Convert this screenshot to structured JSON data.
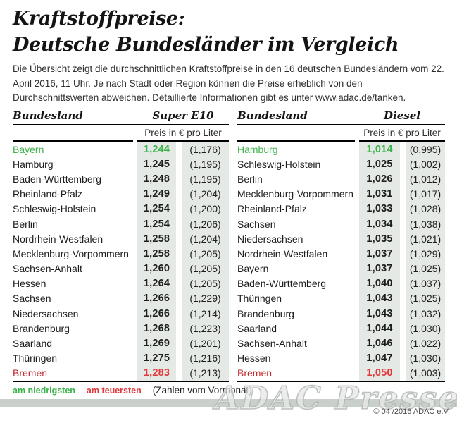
{
  "title": {
    "line1": "Kraftstoffpreise:",
    "line2": "Deutsche Bundesländer im Vergleich"
  },
  "intro": "Die Übersicht zeigt die durchschnittlichen Kraftstoffpreise in den 16 deutschen Bundesländern vom 22. April 2016, 11 Uhr. Je nach Stadt oder Region können die Preise erheblich von den Durchschnittswerten abweichen. Detaillierte Informationen gibt es unter www.adac.de/tanken.",
  "colors": {
    "green": "#3cb24a",
    "red": "#c22a2e",
    "red-bright": "#e23a3c",
    "stripe": "#e5e9e6",
    "bar": "#c9cfca"
  },
  "chart_data": [
    {
      "type": "table",
      "name_header": "Bundesland",
      "fuel_header": "Super E10",
      "sub_header": "Preis in € pro Liter",
      "rows": [
        {
          "name": "Bayern",
          "price": "1,244",
          "prev": "(1,176)",
          "status": "lowest"
        },
        {
          "name": "Hamburg",
          "price": "1,245",
          "prev": "(1,195)"
        },
        {
          "name": "Baden-Württemberg",
          "price": "1,248",
          "prev": "(1,195)"
        },
        {
          "name": "Rheinland-Pfalz",
          "price": "1,249",
          "prev": "(1,204)"
        },
        {
          "name": "Schleswig-Holstein",
          "price": "1,254",
          "prev": "(1,200)"
        },
        {
          "name": "Berlin",
          "price": "1,254",
          "prev": "(1,206)"
        },
        {
          "name": "Nordrhein-Westfalen",
          "price": "1,258",
          "prev": "(1,204)"
        },
        {
          "name": "Mecklenburg-Vorpommern",
          "price": "1,258",
          "prev": "(1,205)"
        },
        {
          "name": "Sachsen-Anhalt",
          "price": "1,260",
          "prev": "(1,205)"
        },
        {
          "name": "Hessen",
          "price": "1,264",
          "prev": "(1,205)"
        },
        {
          "name": "Sachsen",
          "price": "1,266",
          "prev": "(1,229)"
        },
        {
          "name": "Niedersachsen",
          "price": "1,266",
          "prev": "(1,214)"
        },
        {
          "name": "Brandenburg",
          "price": "1,268",
          "prev": "(1,223)"
        },
        {
          "name": "Saarland",
          "price": "1,269",
          "prev": "(1,201)"
        },
        {
          "name": "Thüringen",
          "price": "1,275",
          "prev": "(1,216)"
        },
        {
          "name": "Bremen",
          "price": "1,283",
          "prev": "(1,213)",
          "status": "highest"
        }
      ]
    },
    {
      "type": "table",
      "name_header": "Bundesland",
      "fuel_header": "Diesel",
      "sub_header": "Preis in € pro Liter",
      "rows": [
        {
          "name": "Hamburg",
          "price": "1,014",
          "prev": "(0,995)",
          "status": "lowest"
        },
        {
          "name": "Schleswig-Holstein",
          "price": "1,025",
          "prev": "(1,002)"
        },
        {
          "name": "Berlin",
          "price": "1,026",
          "prev": "(1,012)"
        },
        {
          "name": "Mecklenburg-Vorpommern",
          "price": "1,031",
          "prev": "(1,017)"
        },
        {
          "name": "Rheinland-Pfalz",
          "price": "1,033",
          "prev": "(1,028)"
        },
        {
          "name": "Sachsen",
          "price": "1,034",
          "prev": "(1,038)"
        },
        {
          "name": "Niedersachsen",
          "price": "1,035",
          "prev": "(1,021)"
        },
        {
          "name": "Nordrhein-Westfalen",
          "price": "1,037",
          "prev": "(1,029)"
        },
        {
          "name": "Bayern",
          "price": "1,037",
          "prev": "(1,025)"
        },
        {
          "name": "Baden-Württemberg",
          "price": "1,040",
          "prev": "(1,037)"
        },
        {
          "name": "Thüringen",
          "price": "1,043",
          "prev": "(1,025)"
        },
        {
          "name": "Brandenburg",
          "price": "1,043",
          "prev": "(1,032)"
        },
        {
          "name": "Saarland",
          "price": "1,044",
          "prev": "(1,030)"
        },
        {
          "name": "Sachsen-Anhalt",
          "price": "1,046",
          "prev": "(1,022)"
        },
        {
          "name": "Hessen",
          "price": "1,047",
          "prev": "(1,030)"
        },
        {
          "name": "Bremen",
          "price": "1,050",
          "prev": "(1,003)",
          "status": "highest"
        }
      ]
    }
  ],
  "legend": {
    "lowest_label": "am niedrigsten",
    "highest_label": "am teuersten",
    "note": "(Zahlen vom Vormonat)"
  },
  "watermark": "ADAC Presse",
  "copyright": "© 04 /2016 ADAC e.V."
}
